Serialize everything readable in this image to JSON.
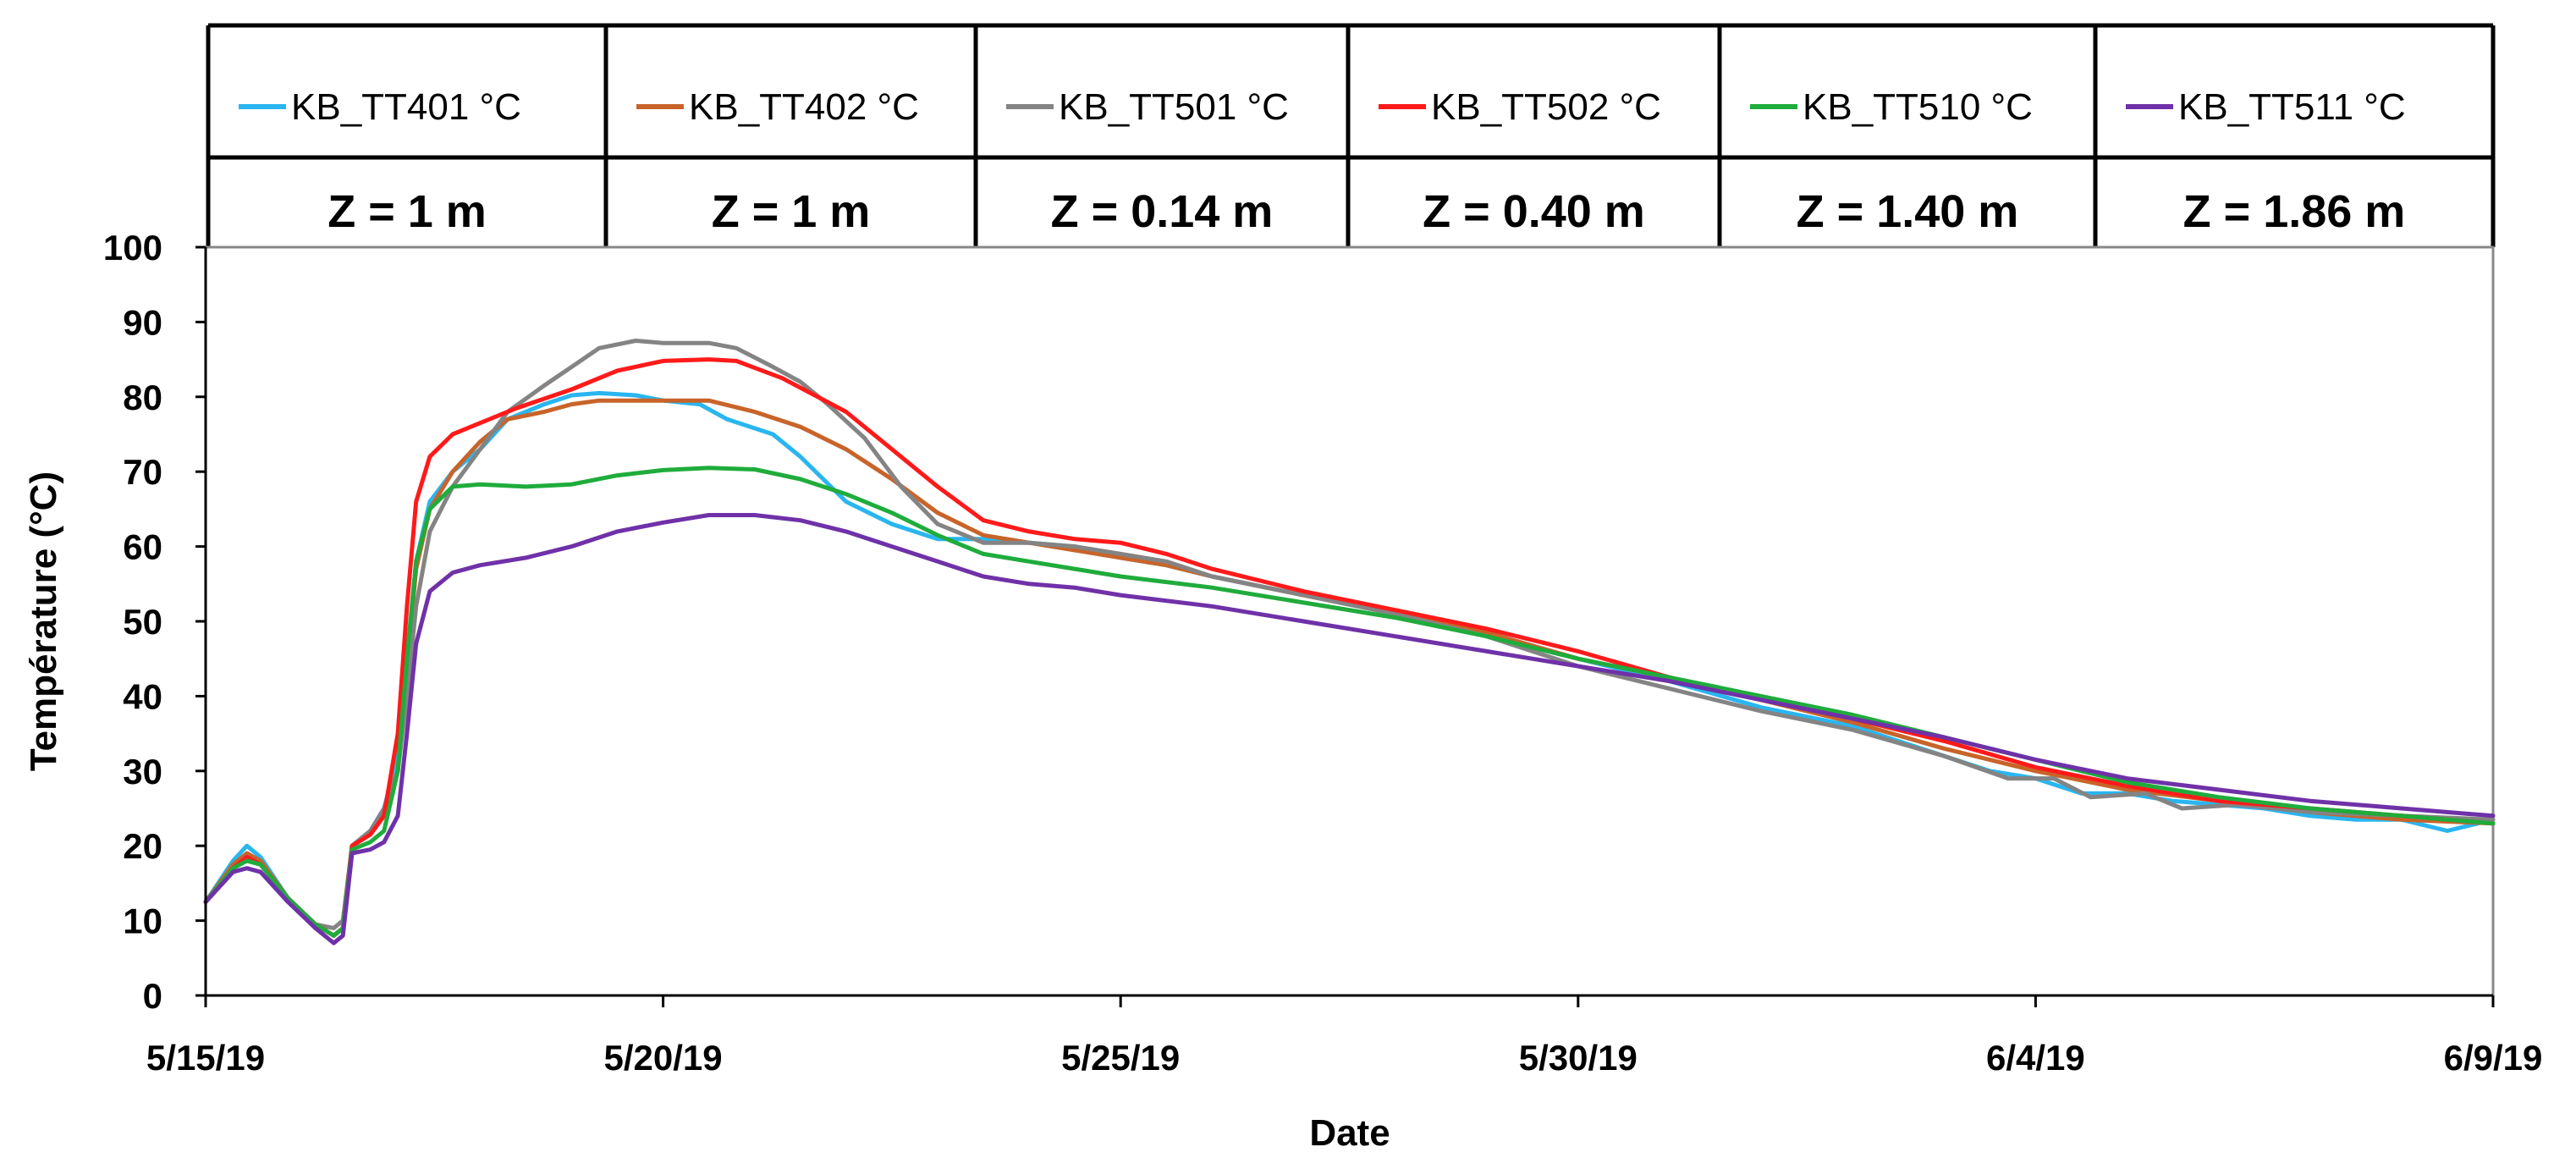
{
  "chart_data": {
    "type": "line",
    "title": "",
    "xlabel": "Date",
    "ylabel": "Température (°C)",
    "xlim": [
      0,
      25
    ],
    "ylim": [
      0,
      100
    ],
    "x_ticks": [
      {
        "value": 0,
        "label": "5/15/19"
      },
      {
        "value": 5,
        "label": "5/20/19"
      },
      {
        "value": 10,
        "label": "5/25/19"
      },
      {
        "value": 15,
        "label": "5/30/19"
      },
      {
        "value": 20,
        "label": "6/4/19"
      },
      {
        "value": 25,
        "label": "6/9/19"
      }
    ],
    "y_ticks": [
      0,
      10,
      20,
      30,
      40,
      50,
      60,
      70,
      80,
      90,
      100
    ],
    "x_unit": "days since 5/15/19",
    "grid": false,
    "legend_position": "top",
    "series": [
      {
        "name": "KB_TT401 °C",
        "depth": "Z = 1 m",
        "color": "#29b6f0",
        "points": [
          [
            0,
            12.5
          ],
          [
            0.3,
            18
          ],
          [
            0.45,
            20
          ],
          [
            0.6,
            18.5
          ],
          [
            0.9,
            13
          ],
          [
            1.2,
            9.5
          ],
          [
            1.4,
            8
          ],
          [
            1.5,
            9
          ],
          [
            1.6,
            20
          ],
          [
            1.8,
            22
          ],
          [
            1.95,
            25
          ],
          [
            2.1,
            32
          ],
          [
            2.2,
            45
          ],
          [
            2.3,
            58
          ],
          [
            2.45,
            66
          ],
          [
            2.7,
            70
          ],
          [
            3,
            73
          ],
          [
            3.3,
            77
          ],
          [
            3.7,
            79
          ],
          [
            4,
            80.2
          ],
          [
            4.3,
            80.5
          ],
          [
            4.7,
            80.2
          ],
          [
            5,
            79.5
          ],
          [
            5.4,
            79
          ],
          [
            5.7,
            77
          ],
          [
            6.2,
            75
          ],
          [
            6.5,
            72
          ],
          [
            7,
            66
          ],
          [
            7.5,
            63
          ],
          [
            8,
            61
          ],
          [
            8.5,
            61
          ],
          [
            9,
            60.5
          ],
          [
            9.5,
            60
          ],
          [
            10,
            58.5
          ],
          [
            10.5,
            57.5
          ],
          [
            11,
            56
          ],
          [
            12,
            53.5
          ],
          [
            13,
            51
          ],
          [
            14,
            48.5
          ],
          [
            15,
            45
          ],
          [
            16,
            42
          ],
          [
            17,
            38.5
          ],
          [
            18,
            36
          ],
          [
            19,
            32
          ],
          [
            19.5,
            30
          ],
          [
            20,
            29
          ],
          [
            20.5,
            27
          ],
          [
            21,
            27
          ],
          [
            21.5,
            26
          ],
          [
            22,
            25.5
          ],
          [
            22.5,
            25
          ],
          [
            23,
            24
          ],
          [
            23.5,
            23.5
          ],
          [
            24,
            23.5
          ],
          [
            24.5,
            22
          ],
          [
            25,
            23.5
          ]
        ]
      },
      {
        "name": "KB_TT402 °C",
        "depth": "Z = 1 m",
        "color": "#c8642a",
        "points": [
          [
            0,
            12.5
          ],
          [
            0.3,
            17.5
          ],
          [
            0.45,
            19
          ],
          [
            0.6,
            18
          ],
          [
            0.9,
            13
          ],
          [
            1.2,
            9.5
          ],
          [
            1.4,
            8
          ],
          [
            1.5,
            9
          ],
          [
            1.6,
            20
          ],
          [
            1.8,
            21.5
          ],
          [
            1.95,
            24
          ],
          [
            2.1,
            30
          ],
          [
            2.2,
            44
          ],
          [
            2.3,
            57
          ],
          [
            2.45,
            65
          ],
          [
            2.7,
            70
          ],
          [
            3,
            74
          ],
          [
            3.3,
            77
          ],
          [
            3.7,
            78
          ],
          [
            4,
            79
          ],
          [
            4.3,
            79.5
          ],
          [
            4.7,
            79.5
          ],
          [
            5,
            79.5
          ],
          [
            5.5,
            79.5
          ],
          [
            6,
            78
          ],
          [
            6.5,
            76
          ],
          [
            7,
            73
          ],
          [
            7.5,
            69
          ],
          [
            8,
            64.5
          ],
          [
            8.5,
            61.5
          ],
          [
            9,
            60.5
          ],
          [
            9.5,
            59.5
          ],
          [
            10,
            58.5
          ],
          [
            10.5,
            57.5
          ],
          [
            11,
            56
          ],
          [
            12,
            53.5
          ],
          [
            13,
            51
          ],
          [
            14,
            48.5
          ],
          [
            15,
            45
          ],
          [
            16,
            42.5
          ],
          [
            17,
            39.5
          ],
          [
            18,
            36.5
          ],
          [
            19,
            33
          ],
          [
            20,
            30
          ],
          [
            21,
            27.5
          ],
          [
            22,
            26
          ],
          [
            23,
            24.5
          ],
          [
            24,
            23.5
          ],
          [
            25,
            23
          ]
        ]
      },
      {
        "name": "KB_TT501 °C",
        "depth": "Z = 0.14 m",
        "color": "#848484",
        "points": [
          [
            0,
            12.5
          ],
          [
            0.3,
            17
          ],
          [
            0.45,
            18.5
          ],
          [
            0.6,
            17.5
          ],
          [
            0.9,
            13
          ],
          [
            1.2,
            9.5
          ],
          [
            1.4,
            9
          ],
          [
            1.5,
            10
          ],
          [
            1.6,
            20
          ],
          [
            1.8,
            22
          ],
          [
            1.95,
            25
          ],
          [
            2.1,
            30
          ],
          [
            2.2,
            40
          ],
          [
            2.3,
            52
          ],
          [
            2.45,
            62
          ],
          [
            2.7,
            68
          ],
          [
            3,
            73
          ],
          [
            3.3,
            78
          ],
          [
            3.7,
            81.5
          ],
          [
            4,
            84
          ],
          [
            4.3,
            86.5
          ],
          [
            4.7,
            87.5
          ],
          [
            5,
            87.2
          ],
          [
            5.5,
            87.2
          ],
          [
            5.8,
            86.5
          ],
          [
            6.2,
            84
          ],
          [
            6.5,
            82
          ],
          [
            6.8,
            79
          ],
          [
            7.2,
            74.5
          ],
          [
            7.6,
            68
          ],
          [
            8,
            63
          ],
          [
            8.5,
            60.5
          ],
          [
            9,
            60.5
          ],
          [
            9.5,
            60
          ],
          [
            10,
            59
          ],
          [
            10.5,
            58
          ],
          [
            11,
            56
          ],
          [
            12,
            53.5
          ],
          [
            13,
            51
          ],
          [
            14,
            48
          ],
          [
            15,
            44
          ],
          [
            16,
            41
          ],
          [
            17,
            38
          ],
          [
            18,
            35.5
          ],
          [
            19,
            32
          ],
          [
            19.7,
            29
          ],
          [
            20.2,
            29
          ],
          [
            20.6,
            26.5
          ],
          [
            21.2,
            27
          ],
          [
            21.6,
            25
          ],
          [
            22.2,
            25.5
          ],
          [
            23,
            24.5
          ],
          [
            24,
            24
          ],
          [
            25,
            23.5
          ]
        ]
      },
      {
        "name": "KB_TT502 °C",
        "depth": "Z = 0.40 m",
        "color": "#ff1a1a",
        "points": [
          [
            0,
            12.5
          ],
          [
            0.3,
            17
          ],
          [
            0.45,
            18.5
          ],
          [
            0.6,
            17.5
          ],
          [
            0.9,
            13
          ],
          [
            1.2,
            9.5
          ],
          [
            1.4,
            8
          ],
          [
            1.5,
            9
          ],
          [
            1.6,
            20
          ],
          [
            1.8,
            21.5
          ],
          [
            1.95,
            24
          ],
          [
            2.1,
            35
          ],
          [
            2.2,
            52
          ],
          [
            2.3,
            66
          ],
          [
            2.45,
            72
          ],
          [
            2.7,
            75
          ],
          [
            3,
            76.5
          ],
          [
            3.4,
            78.5
          ],
          [
            4,
            81
          ],
          [
            4.5,
            83.5
          ],
          [
            5,
            84.8
          ],
          [
            5.5,
            85
          ],
          [
            5.8,
            84.8
          ],
          [
            6.3,
            82.5
          ],
          [
            7,
            78
          ],
          [
            7.5,
            73
          ],
          [
            8,
            68
          ],
          [
            8.5,
            63.5
          ],
          [
            9,
            62
          ],
          [
            9.5,
            61
          ],
          [
            10,
            60.5
          ],
          [
            10.5,
            59
          ],
          [
            11,
            57
          ],
          [
            12,
            54
          ],
          [
            13,
            51.5
          ],
          [
            14,
            49
          ],
          [
            15,
            46
          ],
          [
            16,
            42.5
          ],
          [
            17,
            39.5
          ],
          [
            18,
            37
          ],
          [
            19,
            34
          ],
          [
            20,
            30.5
          ],
          [
            21,
            28
          ],
          [
            22,
            26
          ],
          [
            23,
            25
          ],
          [
            24,
            24
          ],
          [
            25,
            23
          ]
        ]
      },
      {
        "name": "KB_TT510 °C",
        "depth": "Z = 1.40 m",
        "color": "#1fac3c",
        "points": [
          [
            0,
            12.5
          ],
          [
            0.3,
            17
          ],
          [
            0.45,
            18
          ],
          [
            0.6,
            17.5
          ],
          [
            0.9,
            13
          ],
          [
            1.2,
            9.5
          ],
          [
            1.4,
            8
          ],
          [
            1.5,
            9
          ],
          [
            1.6,
            19.5
          ],
          [
            1.8,
            20.5
          ],
          [
            1.95,
            22
          ],
          [
            2.1,
            30
          ],
          [
            2.2,
            45
          ],
          [
            2.3,
            58
          ],
          [
            2.45,
            65
          ],
          [
            2.7,
            68
          ],
          [
            3,
            68.3
          ],
          [
            3.5,
            68
          ],
          [
            4,
            68.3
          ],
          [
            4.5,
            69.5
          ],
          [
            5,
            70.2
          ],
          [
            5.5,
            70.5
          ],
          [
            6,
            70.3
          ],
          [
            6.5,
            69
          ],
          [
            7,
            67
          ],
          [
            7.5,
            64.5
          ],
          [
            8,
            61.5
          ],
          [
            8.5,
            59
          ],
          [
            9,
            58
          ],
          [
            9.5,
            57
          ],
          [
            10,
            56
          ],
          [
            11,
            54.5
          ],
          [
            12,
            52.5
          ],
          [
            13,
            50.5
          ],
          [
            14,
            48
          ],
          [
            15,
            45
          ],
          [
            16,
            42.5
          ],
          [
            17,
            40
          ],
          [
            18,
            37.5
          ],
          [
            19,
            34.5
          ],
          [
            20,
            31.5
          ],
          [
            21,
            28.5
          ],
          [
            22,
            26.5
          ],
          [
            23,
            25
          ],
          [
            24,
            24
          ],
          [
            25,
            23
          ]
        ]
      },
      {
        "name": "KB_TT511 °C",
        "depth": "Z = 1.86 m",
        "color": "#6f31a8",
        "points": [
          [
            0,
            12.5
          ],
          [
            0.3,
            16.5
          ],
          [
            0.45,
            17
          ],
          [
            0.6,
            16.5
          ],
          [
            0.9,
            12.5
          ],
          [
            1.2,
            9
          ],
          [
            1.4,
            7
          ],
          [
            1.5,
            8
          ],
          [
            1.6,
            19
          ],
          [
            1.8,
            19.5
          ],
          [
            1.95,
            20.5
          ],
          [
            2.1,
            24
          ],
          [
            2.2,
            35
          ],
          [
            2.3,
            47
          ],
          [
            2.45,
            54
          ],
          [
            2.7,
            56.5
          ],
          [
            3,
            57.5
          ],
          [
            3.5,
            58.5
          ],
          [
            4,
            60
          ],
          [
            4.5,
            62
          ],
          [
            5,
            63.2
          ],
          [
            5.5,
            64.2
          ],
          [
            6,
            64.2
          ],
          [
            6.5,
            63.5
          ],
          [
            7,
            62
          ],
          [
            7.5,
            60
          ],
          [
            8,
            58
          ],
          [
            8.5,
            56
          ],
          [
            9,
            55
          ],
          [
            9.5,
            54.5
          ],
          [
            10,
            53.5
          ],
          [
            11,
            52
          ],
          [
            12,
            50
          ],
          [
            13,
            48
          ],
          [
            14,
            46
          ],
          [
            15,
            44
          ],
          [
            16,
            42
          ],
          [
            17,
            39.5
          ],
          [
            18,
            37
          ],
          [
            19,
            34.5
          ],
          [
            20,
            31.5
          ],
          [
            21,
            29
          ],
          [
            22,
            27.5
          ],
          [
            23,
            26
          ],
          [
            24,
            25
          ],
          [
            25,
            24
          ]
        ]
      }
    ]
  }
}
